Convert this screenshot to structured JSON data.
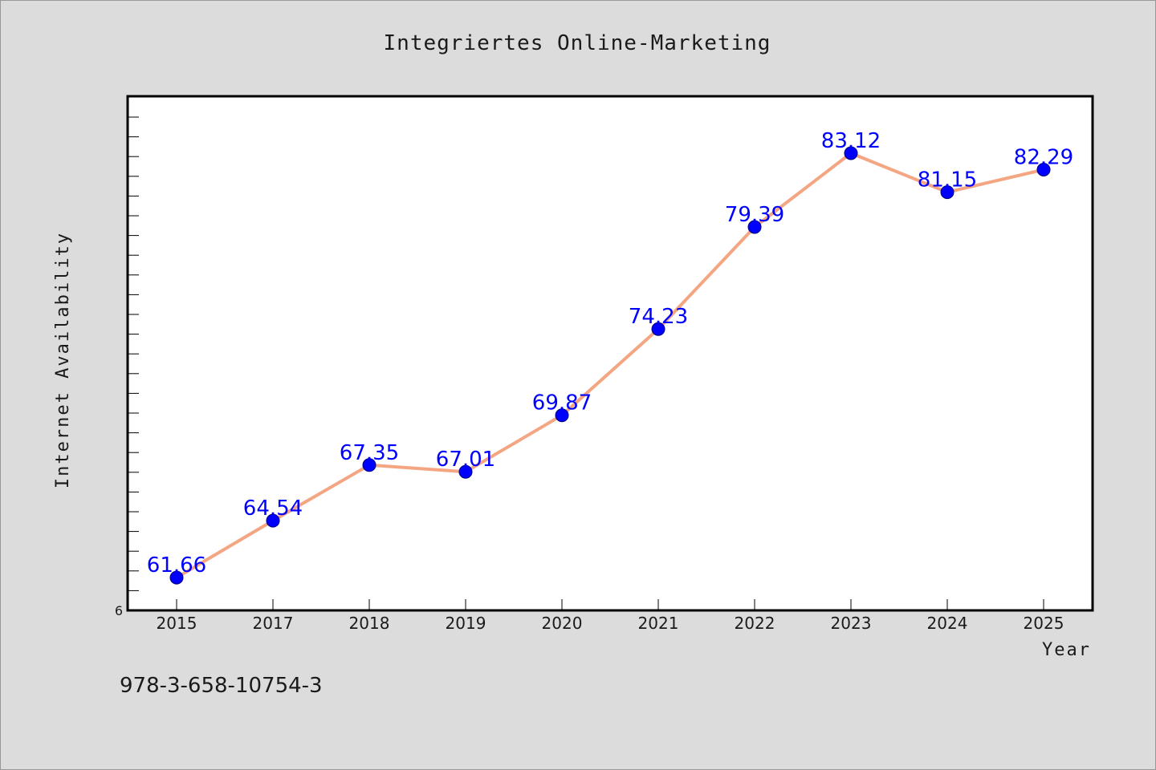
{
  "chart_data": {
    "type": "line",
    "title": "Integriertes Online-Marketing",
    "xlabel": "Year",
    "ylabel": "Internet Availability",
    "categories": [
      "2015",
      "2017",
      "2018",
      "2019",
      "2020",
      "2021",
      "2022",
      "2023",
      "2024",
      "2025"
    ],
    "series": [
      {
        "values": [
          61.66,
          64.54,
          67.35,
          67.01,
          69.87,
          74.23,
          79.39,
          83.12,
          81.15,
          82.29
        ],
        "labels": [
          "61.66",
          "64.54",
          "67.35",
          "67.01",
          "69.87",
          "74.23",
          "79.39",
          "83.12",
          "81.15",
          "82.29"
        ]
      }
    ],
    "y_tick_labels": [
      "6"
    ],
    "ylim": [
      60,
      86
    ],
    "grid": false,
    "legend": "none",
    "line_color": "#f4a582",
    "marker_color": "#0000ff",
    "label_color": "#0000ff"
  },
  "footer": {
    "isbn": "978-3-658-10754-3"
  }
}
